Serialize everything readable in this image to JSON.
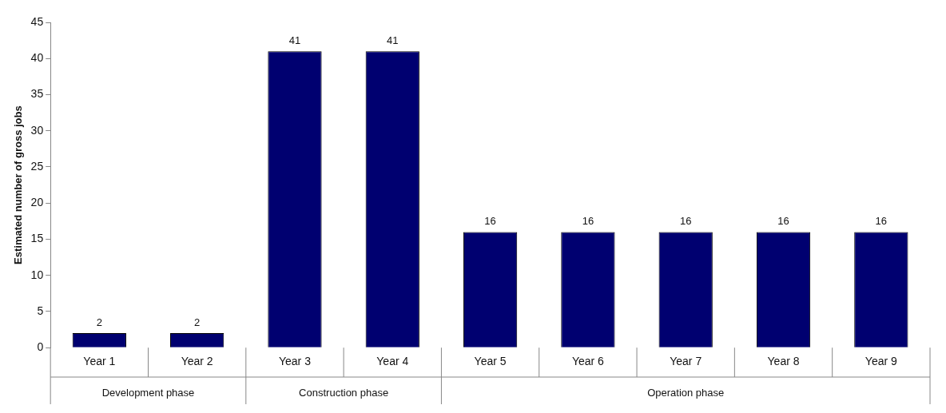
{
  "chart_data": {
    "type": "bar",
    "ylabel": "Estimated number of gross jobs",
    "categories": [
      "Year 1",
      "Year 2",
      "Year 3",
      "Year 4",
      "Year 5",
      "Year 6",
      "Year 7",
      "Year 8",
      "Year 9"
    ],
    "values": [
      2,
      2,
      41,
      41,
      16,
      16,
      16,
      16,
      16
    ],
    "color": "#000070",
    "ylim": [
      0,
      45
    ],
    "yticks": [
      0,
      5,
      10,
      15,
      20,
      25,
      30,
      35,
      40,
      45
    ],
    "grid": false,
    "legend": false,
    "data_labels": true,
    "annotations": [
      "Development phase",
      "Construction phase",
      "Operation phase"
    ]
  }
}
